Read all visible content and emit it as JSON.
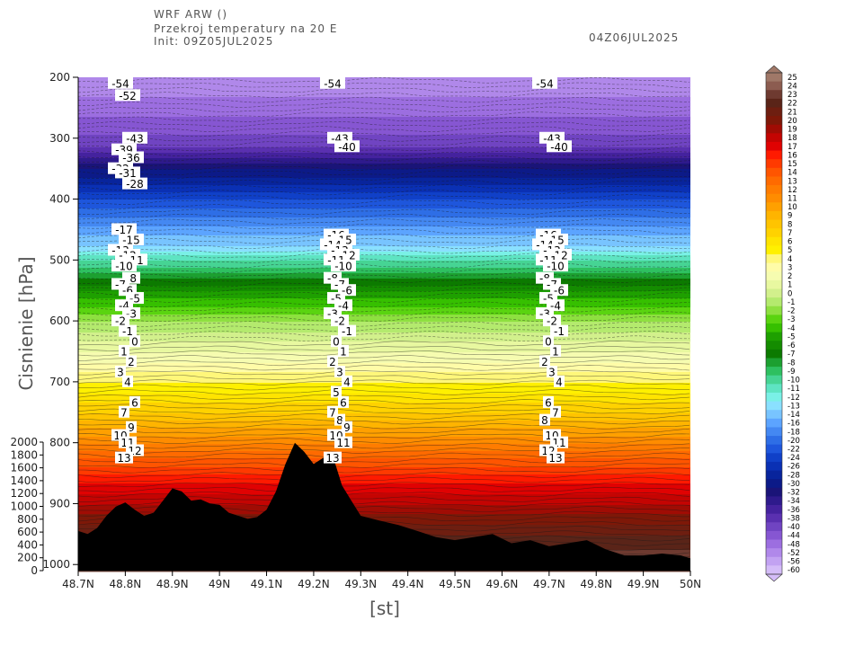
{
  "header": {
    "line1": "WRF ARW ()",
    "line2": "Przekroj temperatury na 20 E",
    "line3": "Init: 09Z05JUL2025",
    "valid": "04Z06JUL2025"
  },
  "chart_data": {
    "type": "heatmap",
    "title": "Przekroj temperatury na 20 E",
    "xlabel": "[st]",
    "ylabel": "Cisnienie  [hPa]",
    "x_ticks": [
      "48.7N",
      "48.8N",
      "48.9N",
      "49N",
      "49.1N",
      "49.2N",
      "49.3N",
      "49.4N",
      "49.5N",
      "49.6N",
      "49.7N",
      "49.8N",
      "49.9N",
      "50N"
    ],
    "x_range": [
      48.7,
      50.0
    ],
    "y_ticks": [
      200,
      300,
      400,
      500,
      600,
      700,
      800,
      900,
      1000
    ],
    "y_range": [
      200,
      1010
    ],
    "y_scale": "linear",
    "y_inverted": true,
    "terrain_ticks": [
      0,
      200,
      400,
      600,
      800,
      1000,
      1200,
      1400,
      1600,
      1800,
      2000
    ],
    "terrain_profile": {
      "lat": [
        48.7,
        48.72,
        48.74,
        48.76,
        48.78,
        48.8,
        48.82,
        48.84,
        48.86,
        48.88,
        48.9,
        48.92,
        48.94,
        48.96,
        48.98,
        49.0,
        49.02,
        49.04,
        49.06,
        49.08,
        49.1,
        49.12,
        49.14,
        49.16,
        49.18,
        49.2,
        49.22,
        49.24,
        49.26,
        49.28,
        49.3,
        49.34,
        49.38,
        49.42,
        49.46,
        49.5,
        49.54,
        49.58,
        49.62,
        49.66,
        49.7,
        49.74,
        49.78,
        49.82,
        49.86,
        49.9,
        49.94,
        49.98,
        50.0
      ],
      "pressure": [
        945,
        950,
        940,
        920,
        905,
        898,
        910,
        920,
        915,
        895,
        875,
        880,
        895,
        893,
        900,
        902,
        915,
        920,
        925,
        922,
        910,
        880,
        835,
        800,
        815,
        835,
        825,
        820,
        870,
        895,
        920,
        928,
        935,
        945,
        955,
        960,
        955,
        950,
        965,
        960,
        970,
        965,
        960,
        975,
        985,
        985,
        982,
        985,
        990
      ]
    },
    "temperature_at_levels": {
      "pressure": [
        200,
        250,
        300,
        350,
        400,
        450,
        500,
        550,
        600,
        650,
        700,
        750,
        800,
        850,
        900,
        950,
        1000
      ],
      "temperature": [
        -55,
        -50,
        -43,
        -32,
        -24,
        -17,
        -11,
        -6,
        -2,
        1,
        4,
        7,
        11,
        15,
        18,
        21,
        23
      ]
    },
    "contour_labels": {
      "left_column": [
        "-54",
        "-52",
        "-43",
        "-39",
        "-36",
        "-32",
        "-31",
        "-28",
        "-17",
        "-15",
        "-13",
        "-12",
        "-11",
        "-10",
        "-8",
        "-7",
        "-6",
        "-5",
        "-4",
        "-3",
        "-2",
        "-1",
        "0",
        "1",
        "2",
        "3",
        "4",
        "6",
        "7",
        "9",
        "10",
        "11",
        "12",
        "13"
      ],
      "mid_column": [
        "-54",
        "-43",
        "-40",
        "-16",
        "-15",
        "-14",
        "-13",
        "-12",
        "-11",
        "-10",
        "-8",
        "-7",
        "-6",
        "-5",
        "-4",
        "-3",
        "-2",
        "-1",
        "0",
        "1",
        "2",
        "3",
        "4",
        "5",
        "6",
        "7",
        "8",
        "9",
        "10",
        "11",
        "13"
      ],
      "right_column": [
        "-54",
        "-43",
        "-40",
        "-16",
        "-15",
        "-14",
        "-13",
        "-12",
        "-11",
        "-10",
        "-8",
        "-7",
        "-6",
        "-5",
        "-4",
        "-3",
        "-2",
        "-1",
        "0",
        "1",
        "2",
        "3",
        "4",
        "6",
        "7",
        "8",
        "10",
        "11",
        "12",
        "13"
      ]
    },
    "colorbar": {
      "labels": [
        "25",
        "24",
        "23",
        "22",
        "21",
        "20",
        "19",
        "18",
        "17",
        "16",
        "15",
        "14",
        "13",
        "12",
        "11",
        "10",
        "9",
        "8",
        "7",
        "6",
        "5",
        "4",
        "3",
        "2",
        "1",
        "0",
        "-1",
        "-2",
        "-3",
        "-4",
        "-5",
        "-6",
        "-7",
        "-8",
        "-9",
        "-10",
        "-11",
        "-12",
        "-13",
        "-14",
        "-16",
        "-18",
        "-20",
        "-22",
        "-24",
        "-26",
        "-28",
        "-30",
        "-32",
        "-34",
        "-36",
        "-38",
        "-40",
        "-44",
        "-48",
        "-52",
        "-56",
        "-60"
      ],
      "colors": [
        "#a07868",
        "#8c5c50",
        "#6e3a30",
        "#5a2418",
        "#6e1e10",
        "#7e1808",
        "#a00c04",
        "#c40402",
        "#e00202",
        "#ff1a00",
        "#ff3a00",
        "#ff5500",
        "#ff6a00",
        "#ff7c00",
        "#ff8c00",
        "#ffa000",
        "#ffb400",
        "#ffc400",
        "#ffd200",
        "#ffe400",
        "#fff000",
        "#fff77a",
        "#fffca8",
        "#f6fcb0",
        "#e8f8a0",
        "#d2f08c",
        "#b4ea6e",
        "#8ee040",
        "#5ad410",
        "#36c000",
        "#1ea000",
        "#148c00",
        "#0c7a00",
        "#1ca030",
        "#2ec060",
        "#46d494",
        "#5ee4c2",
        "#7af0e6",
        "#8ae0ff",
        "#78c4ff",
        "#5ca4ff",
        "#4488f2",
        "#2e6ee6",
        "#1e56dc",
        "#1040c8",
        "#0a30b4",
        "#08249c",
        "#0c1a88",
        "#1a1478",
        "#2e1a8c",
        "#44229e",
        "#5a30b0",
        "#7044c2",
        "#8656d2",
        "#9c6ee0",
        "#b088ea",
        "#c2a2f2",
        "#d4bcf8"
      ]
    }
  }
}
